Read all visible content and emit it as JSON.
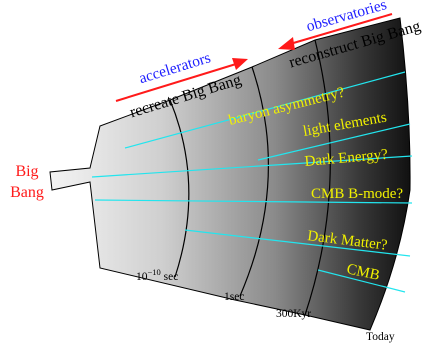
{
  "big_bang": {
    "line1": "Big",
    "line2": "Bang"
  },
  "left_top": {
    "accelerators": "accelerators",
    "recreate": "recreate Big Bang"
  },
  "right_top": {
    "observatories": "observatories",
    "reconstruct": "reconstruct Big Bang"
  },
  "mysteries": {
    "baryon": "baryon asymmetry?",
    "light_elements": "light elements",
    "dark_energy": "Dark Energy?",
    "cmb_bmode": "CMB B-mode?",
    "dark_matter": "Dark Matter?",
    "cmb": "CMB"
  },
  "timeline": {
    "t1_base": "10",
    "t1_exp": "−10",
    "t1_unit": " sec",
    "t2": "1sec",
    "t3": "300Kyr",
    "t4": "Today"
  },
  "colors": {
    "red": "#ff1a1a",
    "blue": "#1f1fff",
    "cyan": "#22e5ee",
    "yellow": "#f2f200"
  }
}
